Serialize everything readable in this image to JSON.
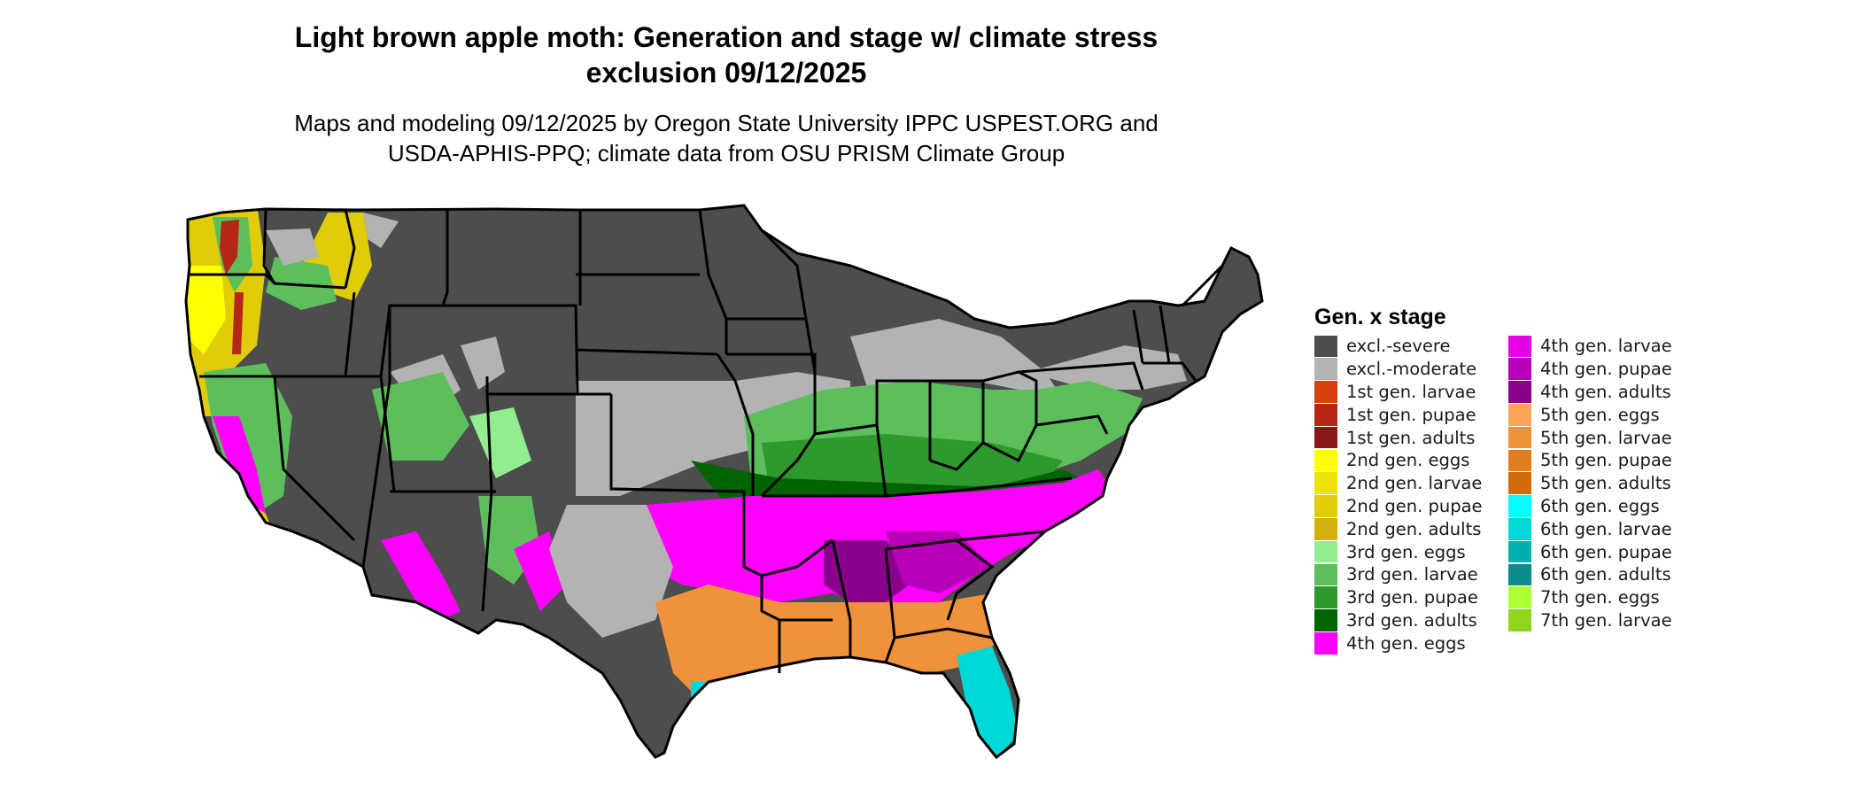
{
  "title_line1": "Light brown apple moth: Generation and stage w/ climate stress",
  "title_line2": "exclusion 09/12/2025",
  "subtitle_line1": "Maps and modeling 09/12/2025 by Oregon State University IPPC USPEST.ORG and",
  "subtitle_line2": "USDA-APHIS-PPQ; climate data from OSU PRISM Climate Group",
  "legend": {
    "title": "Gen. x stage",
    "items": [
      {
        "label": "excl.-severe",
        "color": "#4d4d4d"
      },
      {
        "label": "excl.-moderate",
        "color": "#b3b3b3"
      },
      {
        "label": "1st gen. larvae",
        "color": "#d8400e"
      },
      {
        "label": "1st gen. pupae",
        "color": "#b52616"
      },
      {
        "label": "1st gen. adults",
        "color": "#8b1818"
      },
      {
        "label": "2nd gen. eggs",
        "color": "#ffff00"
      },
      {
        "label": "2nd gen. larvae",
        "color": "#eee10a"
      },
      {
        "label": "2nd gen. pupae",
        "color": "#e1cc0a"
      },
      {
        "label": "2nd gen. adults",
        "color": "#d4ae0a"
      },
      {
        "label": "3rd gen. eggs",
        "color": "#90ee90"
      },
      {
        "label": "3rd gen. larvae",
        "color": "#5cbf5c"
      },
      {
        "label": "3rd gen. pupae",
        "color": "#2e9a2e"
      },
      {
        "label": "3rd gen. adults",
        "color": "#006400"
      },
      {
        "label": "4th gen. eggs",
        "color": "#ff00ff"
      },
      {
        "label": "4th gen. larvae",
        "color": "#e600e6"
      },
      {
        "label": "4th gen. pupae",
        "color": "#b800b8"
      },
      {
        "label": "4th gen. adults",
        "color": "#8b008b"
      },
      {
        "label": "5th gen. eggs",
        "color": "#f9a457"
      },
      {
        "label": "5th gen. larvae",
        "color": "#f0923a"
      },
      {
        "label": "5th gen. pupae",
        "color": "#e27d1e"
      },
      {
        "label": "5th gen. adults",
        "color": "#d26a07"
      },
      {
        "label": "6th gen. eggs",
        "color": "#00ffff"
      },
      {
        "label": "6th gen. larvae",
        "color": "#00d8d8"
      },
      {
        "label": "6th gen. pupae",
        "color": "#00b0b0"
      },
      {
        "label": "6th gen. adults",
        "color": "#0b8b8b"
      },
      {
        "label": "7th gen. eggs",
        "color": "#adff2f"
      },
      {
        "label": "7th gen. larvae",
        "color": "#8fd41f"
      }
    ]
  }
}
